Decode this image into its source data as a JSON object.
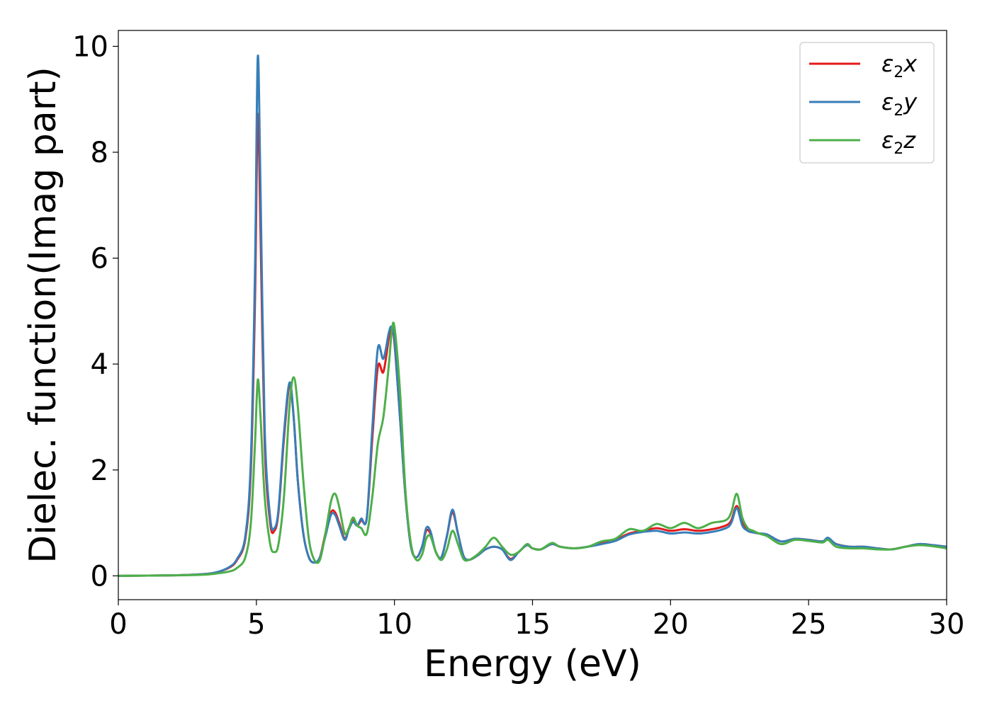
{
  "chart_data": {
    "type": "line",
    "xlabel": "Energy (eV)",
    "ylabel": "Dielec. function(Imag part)",
    "xlim": [
      0,
      30
    ],
    "ylim": [
      -0.45,
      10.3
    ],
    "xticks": [
      0,
      5,
      10,
      15,
      20,
      25,
      30
    ],
    "yticks": [
      0,
      2,
      4,
      6,
      8,
      10
    ],
    "grid": false,
    "legend_position": "top-right",
    "series": [
      {
        "name": "ε2x",
        "legend_symbol": "ε",
        "legend_sub": "2",
        "legend_var": "x",
        "color": "#e41a1c",
        "x": [
          0,
          2,
          3,
          3.5,
          4,
          4.3,
          4.6,
          4.8,
          4.95,
          5.05,
          5.15,
          5.3,
          5.5,
          5.65,
          5.8,
          6.0,
          6.2,
          6.35,
          6.5,
          6.7,
          6.9,
          7.1,
          7.3,
          7.5,
          7.7,
          7.85,
          8.0,
          8.2,
          8.35,
          8.5,
          8.65,
          8.8,
          9.0,
          9.2,
          9.4,
          9.6,
          9.8,
          9.9,
          10.0,
          10.2,
          10.4,
          10.6,
          10.8,
          11.0,
          11.15,
          11.3,
          11.5,
          11.7,
          11.9,
          12.1,
          12.3,
          12.5,
          12.7,
          13.0,
          13.3,
          13.6,
          13.9,
          14.2,
          14.5,
          14.8,
          15.0,
          15.3,
          15.7,
          16.0,
          16.5,
          17.0,
          17.5,
          18.0,
          18.5,
          19.0,
          19.5,
          20.0,
          20.5,
          21.0,
          21.5,
          22.0,
          22.2,
          22.4,
          22.6,
          22.8,
          23.0,
          23.2,
          23.5,
          24.0,
          24.5,
          25.0,
          25.5,
          25.7,
          26.0,
          26.5,
          27.0,
          27.5,
          28.0,
          28.5,
          29.0,
          29.5,
          30.0
        ],
        "y": [
          0,
          0.01,
          0.03,
          0.06,
          0.15,
          0.3,
          0.7,
          2.0,
          5.2,
          8.7,
          6.5,
          2.5,
          1.0,
          0.85,
          1.2,
          2.6,
          3.6,
          3.0,
          1.8,
          0.8,
          0.35,
          0.25,
          0.35,
          0.8,
          1.2,
          1.2,
          1.0,
          0.7,
          0.9,
          1.05,
          0.95,
          1.05,
          1.1,
          2.6,
          3.95,
          3.85,
          4.5,
          4.7,
          4.4,
          3.0,
          1.5,
          0.55,
          0.35,
          0.55,
          0.85,
          0.8,
          0.45,
          0.35,
          0.75,
          1.2,
          0.8,
          0.38,
          0.3,
          0.38,
          0.5,
          0.55,
          0.5,
          0.32,
          0.45,
          0.58,
          0.52,
          0.5,
          0.6,
          0.55,
          0.52,
          0.55,
          0.62,
          0.68,
          0.8,
          0.85,
          0.9,
          0.85,
          0.88,
          0.85,
          0.88,
          0.95,
          1.05,
          1.32,
          1.0,
          0.85,
          0.82,
          0.8,
          0.78,
          0.65,
          0.7,
          0.68,
          0.65,
          0.7,
          0.6,
          0.55,
          0.55,
          0.52,
          0.5,
          0.55,
          0.6,
          0.58,
          0.55
        ]
      },
      {
        "name": "ε2y",
        "legend_symbol": "ε",
        "legend_sub": "2",
        "legend_var": "y",
        "color": "#377eb8",
        "x": [
          0,
          2,
          3,
          3.5,
          4,
          4.3,
          4.6,
          4.8,
          4.95,
          5.05,
          5.15,
          5.3,
          5.5,
          5.65,
          5.8,
          6.0,
          6.2,
          6.35,
          6.5,
          6.7,
          6.9,
          7.1,
          7.3,
          7.5,
          7.7,
          7.85,
          8.0,
          8.2,
          8.35,
          8.5,
          8.65,
          8.8,
          9.0,
          9.2,
          9.4,
          9.6,
          9.8,
          9.9,
          10.0,
          10.2,
          10.4,
          10.6,
          10.8,
          11.0,
          11.15,
          11.3,
          11.5,
          11.7,
          11.9,
          12.1,
          12.3,
          12.5,
          12.7,
          13.0,
          13.3,
          13.6,
          13.9,
          14.2,
          14.5,
          14.8,
          15.0,
          15.3,
          15.7,
          16.0,
          16.5,
          17.0,
          17.5,
          18.0,
          18.5,
          19.0,
          19.5,
          20.0,
          20.5,
          21.0,
          21.5,
          22.0,
          22.2,
          22.4,
          22.6,
          22.8,
          23.0,
          23.2,
          23.5,
          24.0,
          24.5,
          25.0,
          25.5,
          25.7,
          26.0,
          26.5,
          27.0,
          27.5,
          28.0,
          28.5,
          29.0,
          29.5,
          30.0
        ],
        "y": [
          0,
          0.01,
          0.03,
          0.06,
          0.16,
          0.32,
          0.75,
          2.2,
          5.8,
          9.8,
          7.3,
          2.8,
          1.1,
          0.9,
          1.25,
          2.7,
          3.65,
          3.0,
          1.8,
          0.8,
          0.35,
          0.25,
          0.35,
          0.75,
          1.15,
          1.15,
          0.95,
          0.68,
          0.88,
          1.02,
          0.95,
          1.08,
          1.1,
          2.8,
          4.3,
          4.1,
          4.6,
          4.7,
          4.45,
          3.0,
          1.5,
          0.55,
          0.35,
          0.55,
          0.9,
          0.85,
          0.45,
          0.35,
          0.75,
          1.25,
          0.8,
          0.38,
          0.3,
          0.38,
          0.5,
          0.55,
          0.5,
          0.3,
          0.45,
          0.58,
          0.52,
          0.5,
          0.6,
          0.55,
          0.52,
          0.55,
          0.6,
          0.66,
          0.78,
          0.83,
          0.85,
          0.8,
          0.82,
          0.8,
          0.83,
          0.9,
          1.0,
          1.28,
          0.95,
          0.85,
          0.82,
          0.8,
          0.78,
          0.65,
          0.7,
          0.68,
          0.65,
          0.72,
          0.6,
          0.55,
          0.55,
          0.52,
          0.5,
          0.55,
          0.6,
          0.58,
          0.55
        ]
      },
      {
        "name": "ε2z",
        "legend_symbol": "ε",
        "legend_sub": "2",
        "legend_var": "z",
        "color": "#4daf4a",
        "x": [
          0,
          2,
          3,
          3.5,
          4,
          4.3,
          4.6,
          4.8,
          4.95,
          5.05,
          5.15,
          5.3,
          5.5,
          5.65,
          5.8,
          6.0,
          6.2,
          6.35,
          6.5,
          6.7,
          6.9,
          7.1,
          7.3,
          7.5,
          7.7,
          7.85,
          8.0,
          8.2,
          8.35,
          8.5,
          8.65,
          8.8,
          9.0,
          9.2,
          9.4,
          9.6,
          9.8,
          9.9,
          10.0,
          10.2,
          10.4,
          10.6,
          10.8,
          11.0,
          11.15,
          11.3,
          11.5,
          11.7,
          11.9,
          12.1,
          12.3,
          12.5,
          12.7,
          13.0,
          13.3,
          13.6,
          13.9,
          14.2,
          14.5,
          14.8,
          15.0,
          15.3,
          15.7,
          16.0,
          16.5,
          17.0,
          17.5,
          18.0,
          18.5,
          19.0,
          19.5,
          20.0,
          20.5,
          21.0,
          21.5,
          22.0,
          22.2,
          22.4,
          22.6,
          22.8,
          23.0,
          23.2,
          23.5,
          24.0,
          24.5,
          25.0,
          25.5,
          25.7,
          26.0,
          26.5,
          27.0,
          27.5,
          28.0,
          28.5,
          29.0,
          29.5,
          30.0
        ],
        "y": [
          0,
          0.01,
          0.02,
          0.04,
          0.08,
          0.15,
          0.35,
          1.0,
          2.5,
          3.7,
          3.0,
          1.5,
          0.6,
          0.45,
          0.6,
          1.5,
          3.2,
          3.75,
          3.2,
          1.8,
          0.7,
          0.3,
          0.3,
          0.8,
          1.4,
          1.55,
          1.3,
          0.8,
          0.9,
          1.1,
          0.95,
          0.9,
          0.8,
          1.5,
          2.5,
          3.0,
          4.0,
          4.6,
          4.7,
          3.5,
          1.6,
          0.6,
          0.3,
          0.4,
          0.7,
          0.75,
          0.45,
          0.3,
          0.5,
          0.85,
          0.6,
          0.32,
          0.3,
          0.4,
          0.55,
          0.72,
          0.55,
          0.4,
          0.45,
          0.6,
          0.52,
          0.5,
          0.62,
          0.55,
          0.52,
          0.55,
          0.65,
          0.7,
          0.88,
          0.85,
          0.98,
          0.9,
          1.0,
          0.9,
          1.0,
          1.05,
          1.2,
          1.55,
          1.1,
          0.9,
          0.85,
          0.8,
          0.75,
          0.6,
          0.68,
          0.66,
          0.63,
          0.68,
          0.55,
          0.52,
          0.52,
          0.5,
          0.5,
          0.55,
          0.58,
          0.56,
          0.52
        ]
      }
    ]
  }
}
